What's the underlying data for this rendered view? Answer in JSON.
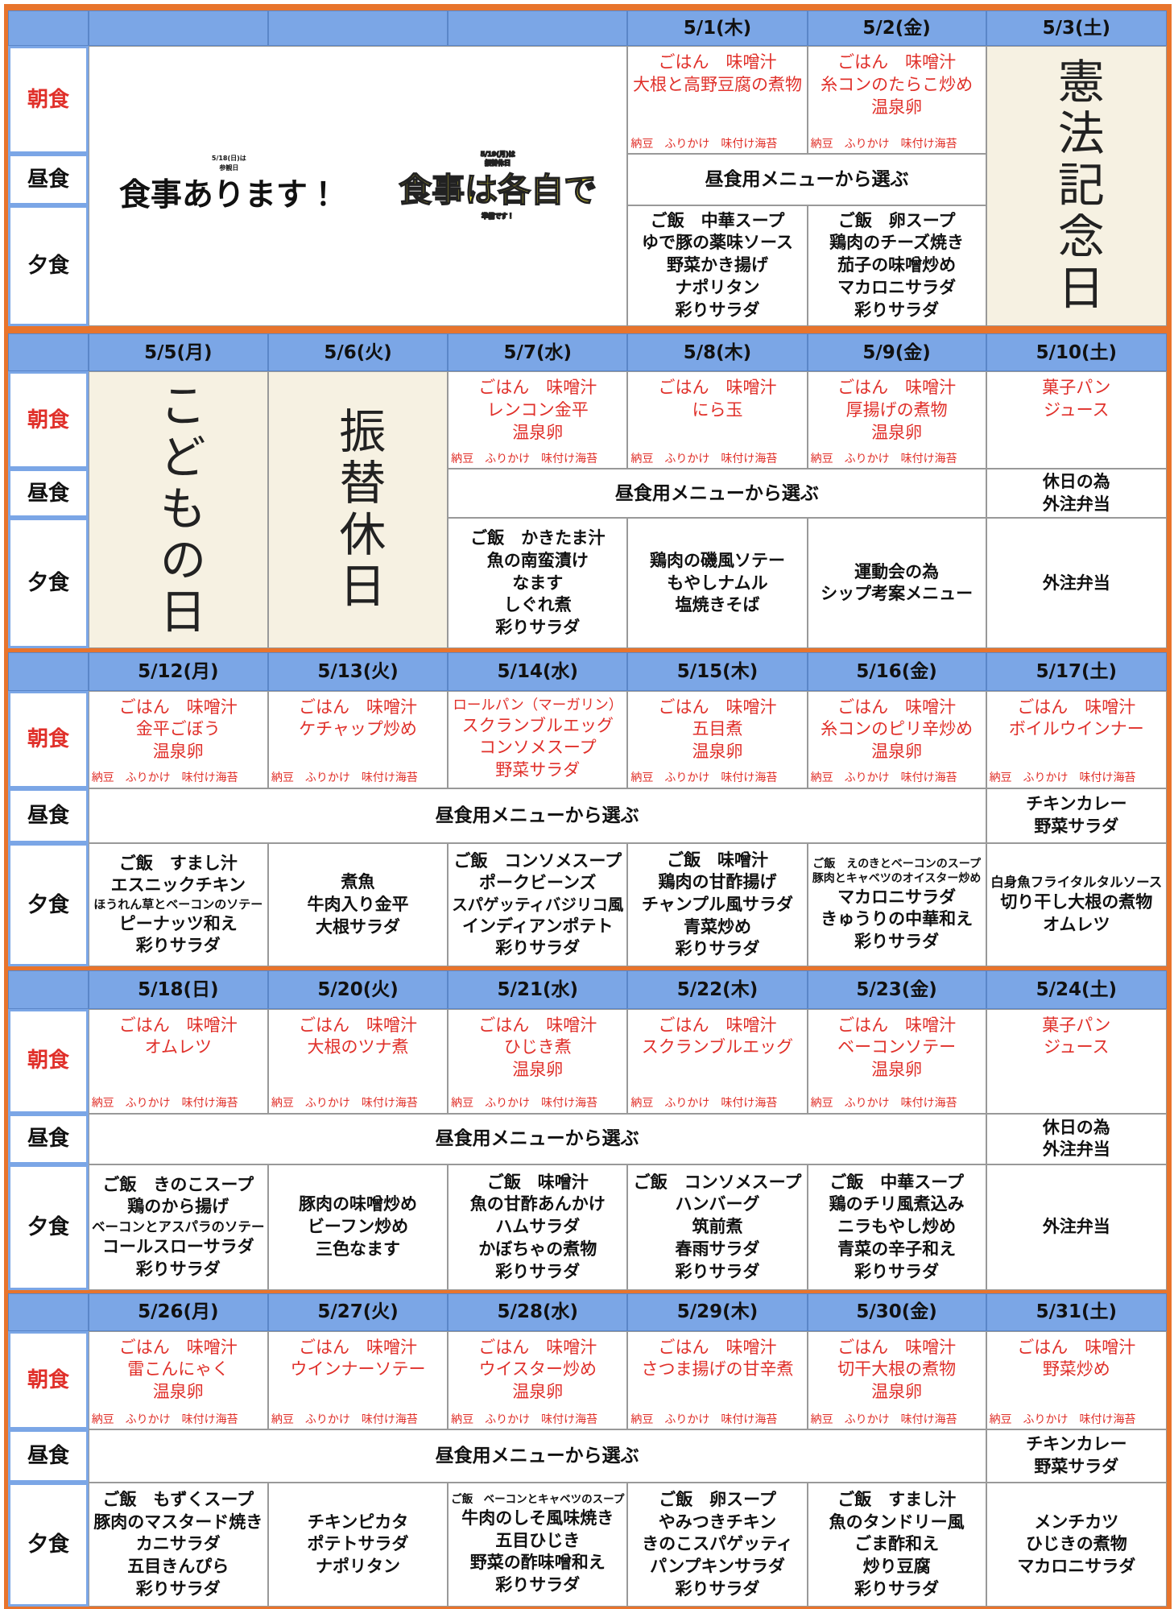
{
  "meal_labels": [
    "朝食",
    "昼食",
    "夕食"
  ],
  "weeks": [
    {
      "dates": [
        null,
        null,
        null,
        "5/1(木)",
        "5/2(金)",
        "5/3(土)"
      ],
      "notice": {
        "left": [
          "5/18(日)は",
          "参観日",
          "食事あります！"
        ],
        "right": [
          "5/19(月)は",
          "振替休日",
          "食事は各自で",
          "準備です！"
        ]
      },
      "breakfast": [
        null,
        null,
        null,
        {
          "lines": [
            "ごはん　味噌汁",
            "大根と高野豆腐の煮物"
          ],
          "note": "納豆　ふりかけ　味付け海苔"
        },
        {
          "lines": [
            "ごはん　味噌汁",
            "糸コンのたらこ炒め",
            "温泉卵"
          ],
          "note": "納豆　ふりかけ　味付け海苔"
        },
        {
          "holiday": "憲法記念日"
        }
      ],
      "lunch": [
        null,
        null,
        null,
        [
          "昼食用メニューから選ぶ"
        ],
        null,
        null
      ],
      "dinner": [
        null,
        null,
        null,
        [
          "ご飯　中華スープ",
          "ゆで豚の薬味ソース",
          "野菜かき揚げ",
          "ナポリタン",
          "彩りサラダ"
        ],
        [
          "ご飯　卵スープ",
          "鶏肉のチーズ焼き",
          "茄子の味噌炒め",
          "マカロニサラダ",
          "彩りサラダ"
        ],
        null
      ]
    },
    {
      "dates": [
        "5/5(月)",
        "5/6(火)",
        "5/7(水)",
        "5/8(木)",
        "5/9(金)",
        "5/10(土)"
      ],
      "breakfast": [
        {
          "holiday": "こどもの日"
        },
        {
          "holiday": "振替休日"
        },
        {
          "lines": [
            "ごはん　味噌汁",
            "レンコン金平",
            "温泉卵"
          ],
          "note": "納豆　ふりかけ　味付け海苔"
        },
        {
          "lines": [
            "ごはん　味噌汁",
            "にら玉"
          ],
          "note": "納豆　ふりかけ　味付け海苔"
        },
        {
          "lines": [
            "ごはん　味噌汁",
            "厚揚げの煮物",
            "温泉卵"
          ],
          "note": "納豆　ふりかけ　味付け海苔"
        },
        {
          "lines": [
            "菓子パン",
            "ジュース"
          ]
        }
      ],
      "lunch": [
        null,
        null,
        [
          "昼食用メニューから選ぶ"
        ],
        null,
        null,
        [
          "休日の為",
          "外注弁当"
        ]
      ],
      "dinner": [
        null,
        null,
        [
          "ご飯　かきたま汁",
          "魚の南蛮漬け",
          "なます",
          "しぐれ煮",
          "彩りサラダ"
        ],
        [
          "鶏肉の磯風ソテー",
          "もやしナムル",
          "塩焼きそば"
        ],
        [
          "運動会の為",
          "シップ考案メニュー"
        ],
        [
          "外注弁当"
        ]
      ]
    },
    {
      "dates": [
        "5/12(月)",
        "5/13(火)",
        "5/14(水)",
        "5/15(木)",
        "5/16(金)",
        "5/17(土)"
      ],
      "breakfast": [
        {
          "lines": [
            "ごはん　味噌汁",
            "金平ごぼう",
            "温泉卵"
          ],
          "note": "納豆　ふりかけ　味付け海苔"
        },
        {
          "lines": [
            "ごはん　味噌汁",
            "ケチャップ炒め"
          ],
          "note": "納豆　ふりかけ　味付け海苔"
        },
        {
          "lines": [
            "ロールパン（マーガリン）",
            "スクランブルエッグ",
            "コンソメスープ",
            "野菜サラダ"
          ]
        },
        {
          "lines": [
            "ごはん　味噌汁",
            "五目煮",
            "温泉卵"
          ],
          "note": "納豆　ふりかけ　味付け海苔"
        },
        {
          "lines": [
            "ごはん　味噌汁",
            "糸コンのピリ辛炒め",
            "温泉卵"
          ],
          "note": "納豆　ふりかけ　味付け海苔"
        },
        {
          "lines": [
            "ごはん　味噌汁",
            "ボイルウインナー"
          ],
          "note": "納豆　ふりかけ　味付け海苔"
        }
      ],
      "lunch": [
        [
          "昼食用メニューから選ぶ"
        ],
        null,
        null,
        null,
        null,
        [
          "チキンカレー",
          "野菜サラダ"
        ]
      ],
      "dinner": [
        [
          "ご飯　すまし汁",
          "エスニックチキン",
          "ほうれん草とベーコンのソテー",
          "ピーナッツ和え",
          "彩りサラダ"
        ],
        [
          "煮魚",
          "牛肉入り金平",
          "大根サラダ"
        ],
        [
          "ご飯　コンソメスープ",
          "ポークビーンズ",
          "スパゲッティバジリコ風",
          "インディアンポテト",
          "彩りサラダ"
        ],
        [
          "ご飯　味噌汁",
          "鶏肉の甘酢揚げ",
          "チャンプル風サラダ",
          "青菜炒め",
          "彩りサラダ"
        ],
        [
          "ご飯　えのきとベーコンのスープ",
          "豚肉とキャベツのオイスター炒め",
          "マカロニサラダ",
          "きゅうりの中華和え",
          "彩りサラダ"
        ],
        [
          "白身魚フライタルタルソース",
          "切り干し大根の煮物",
          "オムレツ"
        ]
      ]
    },
    {
      "dates": [
        "5/18(日)",
        "5/20(火)",
        "5/21(水)",
        "5/22(木)",
        "5/23(金)",
        "5/24(土)"
      ],
      "breakfast": [
        {
          "lines": [
            "ごはん　味噌汁",
            "オムレツ"
          ],
          "note": "納豆　ふりかけ　味付け海苔"
        },
        {
          "lines": [
            "ごはん　味噌汁",
            "大根のツナ煮"
          ],
          "note": "納豆　ふりかけ　味付け海苔"
        },
        {
          "lines": [
            "ごはん　味噌汁",
            "ひじき煮",
            "温泉卵"
          ],
          "note": "納豆　ふりかけ　味付け海苔"
        },
        {
          "lines": [
            "ごはん　味噌汁",
            "スクランブルエッグ"
          ],
          "note": "納豆　ふりかけ　味付け海苔"
        },
        {
          "lines": [
            "ごはん　味噌汁",
            "ベーコンソテー",
            "温泉卵"
          ],
          "note": "納豆　ふりかけ　味付け海苔"
        },
        {
          "lines": [
            "菓子パン",
            "ジュース"
          ]
        }
      ],
      "lunch": [
        [
          "昼食用メニューから選ぶ"
        ],
        null,
        null,
        null,
        null,
        [
          "休日の為",
          "外注弁当"
        ]
      ],
      "dinner": [
        [
          "ご飯　きのこスープ",
          "鶏のから揚げ",
          "ベーコンとアスパラのソテー",
          "コールスローサラダ",
          "彩りサラダ"
        ],
        [
          "豚肉の味噌炒め",
          "ビーフン炒め",
          "三色なます"
        ],
        [
          "ご飯　味噌汁",
          "魚の甘酢あんかけ",
          "ハムサラダ",
          "かぼちゃの煮物",
          "彩りサラダ"
        ],
        [
          "ご飯　コンソメスープ",
          "ハンバーグ",
          "筑前煮",
          "春雨サラダ",
          "彩りサラダ"
        ],
        [
          "ご飯　中華スープ",
          "鶏のチリ風煮込み",
          "ニラもやし炒め",
          "青菜の辛子和え",
          "彩りサラダ"
        ],
        [
          "外注弁当"
        ]
      ]
    },
    {
      "dates": [
        "5/26(月)",
        "5/27(火)",
        "5/28(水)",
        "5/29(木)",
        "5/30(金)",
        "5/31(土)"
      ],
      "breakfast": [
        {
          "lines": [
            "ごはん　味噌汁",
            "雷こんにゃく",
            "温泉卵"
          ],
          "note": "納豆　ふりかけ　味付け海苔"
        },
        {
          "lines": [
            "ごはん　味噌汁",
            "ウインナーソテー"
          ],
          "note": "納豆　ふりかけ　味付け海苔"
        },
        {
          "lines": [
            "ごはん　味噌汁",
            "ウイスター炒め",
            "温泉卵"
          ],
          "note": "納豆　ふりかけ　味付け海苔"
        },
        {
          "lines": [
            "ごはん　味噌汁",
            "さつま揚げの甘辛煮"
          ],
          "note": "納豆　ふりかけ　味付け海苔"
        },
        {
          "lines": [
            "ごはん　味噌汁",
            "切干大根の煮物",
            "温泉卵"
          ],
          "note": "納豆　ふりかけ　味付け海苔"
        },
        {
          "lines": [
            "ごはん　味噌汁",
            "野菜炒め"
          ],
          "note": "納豆　ふりかけ　味付け海苔"
        }
      ],
      "lunch": [
        [
          "昼食用メニューから選ぶ"
        ],
        null,
        null,
        null,
        null,
        [
          "チキンカレー",
          "野菜サラダ"
        ]
      ],
      "dinner": [
        [
          "ご飯　もずくスープ",
          "豚肉のマスタード焼き",
          "カニサラダ",
          "五目きんぴら",
          "彩りサラダ"
        ],
        [
          "チキンピカタ",
          "ポテトサラダ",
          "ナポリタン"
        ],
        [
          "ご飯　ベーコンとキャベツのスープ",
          "牛肉のしそ風味焼き",
          "五目ひじき",
          "野菜の酢味噌和え",
          "彩りサラダ"
        ],
        [
          "ご飯　卵スープ",
          "やみつきチキン",
          "きのこスパゲッティ",
          "パンプキンサラダ",
          "彩りサラダ"
        ],
        [
          "ご飯　すまし汁",
          "魚のタンドリー風",
          "ごま酢和え",
          "炒り豆腐",
          "彩りサラダ"
        ],
        [
          "メンチカツ",
          "ひじきの煮物",
          "マカロニサラダ"
        ]
      ]
    }
  ]
}
